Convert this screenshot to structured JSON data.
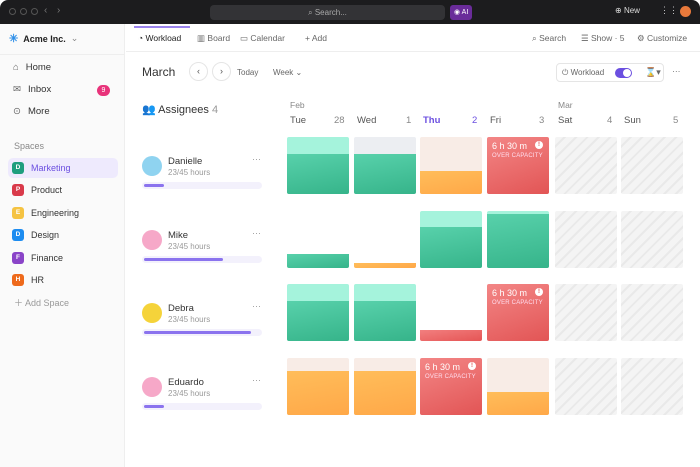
{
  "topbar": {
    "search_placeholder": "Search...",
    "ai_label": "AI",
    "new_label": "New"
  },
  "sidebar": {
    "workspace": "Acme Inc.",
    "nav": [
      {
        "label": "Home",
        "icon": "home-icon"
      },
      {
        "label": "Inbox",
        "icon": "inbox-icon",
        "badge": "9"
      },
      {
        "label": "More",
        "icon": "more-icon"
      }
    ],
    "spaces_heading": "Spaces",
    "spaces": [
      {
        "letter": "D",
        "label": "Marketing",
        "color": "#1e9e7e",
        "active": true
      },
      {
        "letter": "P",
        "label": "Product",
        "color": "#d93a4a"
      },
      {
        "letter": "E",
        "label": "Engineering",
        "color": "#f5c342"
      },
      {
        "letter": "D",
        "label": "Design",
        "color": "#1d8cf0"
      },
      {
        "letter": "F",
        "label": "Finance",
        "color": "#8a44c8"
      },
      {
        "letter": "H",
        "label": "HR",
        "color": "#ee6a1c"
      }
    ],
    "add_space": "Add Space"
  },
  "tabs": [
    {
      "label": "Workload",
      "active": true
    },
    {
      "label": "Board"
    },
    {
      "label": "Calendar"
    },
    {
      "label": "Add"
    }
  ],
  "toolbar": {
    "search": "Search",
    "show": "Show · 5",
    "customize": "Customize"
  },
  "view": {
    "month": "March",
    "today": "Today",
    "range": "Week",
    "workload_label": "Workload",
    "workload_on": true
  },
  "assignees": {
    "label": "Assignees",
    "count": "4"
  },
  "days": [
    {
      "month": "Feb",
      "label": "Tue",
      "num": "28"
    },
    {
      "label": "Wed",
      "num": "1"
    },
    {
      "label": "Thu",
      "num": "2",
      "today": true
    },
    {
      "label": "Fri",
      "num": "3"
    },
    {
      "month": "Mar",
      "label": "Sat",
      "num": "4"
    },
    {
      "label": "Sun",
      "num": "5"
    }
  ],
  "over_text": {
    "time": "6 h 30 m",
    "label": "OVER CAPACITY"
  },
  "colors": {
    "green": "#3dbf94",
    "mint": "#a5f3dc",
    "orange": "#ffb347",
    "peach": "#f8ece6",
    "grey": "#eceef2",
    "red": "#e85a5a",
    "accent": "#6b4fe0"
  },
  "people": [
    {
      "name": "Danielle",
      "hours": "23/45 hours",
      "progress": 0.17,
      "avatar": "#8fd3f0",
      "cells": [
        {
          "t": "green",
          "bg": "mint",
          "f": 0.7
        },
        {
          "t": "green",
          "bg": "grey",
          "f": 0.7
        },
        {
          "t": "orange",
          "bg": "peach",
          "f": 0.4
        },
        {
          "t": "over"
        },
        {
          "t": "weekend"
        },
        {
          "t": "weekend"
        }
      ]
    },
    {
      "name": "Mike",
      "hours": "23/45 hours",
      "progress": 0.68,
      "avatar": "#f6a8c8",
      "cells": [
        {
          "t": "green",
          "bg": "none",
          "f": 0.25
        },
        {
          "t": "orange",
          "bg": "none",
          "f": 0.08
        },
        {
          "t": "green",
          "bg": "mint",
          "f": 0.72
        },
        {
          "t": "green",
          "bg": "mint",
          "f": 0.94
        },
        {
          "t": "weekend"
        },
        {
          "t": "weekend"
        }
      ]
    },
    {
      "name": "Debra",
      "hours": "23/45 hours",
      "progress": 0.92,
      "avatar": "#f5d33a",
      "cells": [
        {
          "t": "green",
          "bg": "mint",
          "f": 0.7
        },
        {
          "t": "green",
          "bg": "mint",
          "f": 0.7
        },
        {
          "t": "red",
          "bg": "none",
          "f": 0.2
        },
        {
          "t": "over"
        },
        {
          "t": "weekend"
        },
        {
          "t": "weekend"
        }
      ]
    },
    {
      "name": "Eduardo",
      "hours": "23/45 hours",
      "progress": 0.17,
      "avatar": "#f6a8c8",
      "cells": [
        {
          "t": "orange",
          "bg": "peach",
          "f": 0.78
        },
        {
          "t": "orange",
          "bg": "peach",
          "f": 0.78
        },
        {
          "t": "over"
        },
        {
          "t": "orange",
          "bg": "peach",
          "f": 0.4
        },
        {
          "t": "weekend"
        },
        {
          "t": "weekend"
        }
      ]
    }
  ]
}
